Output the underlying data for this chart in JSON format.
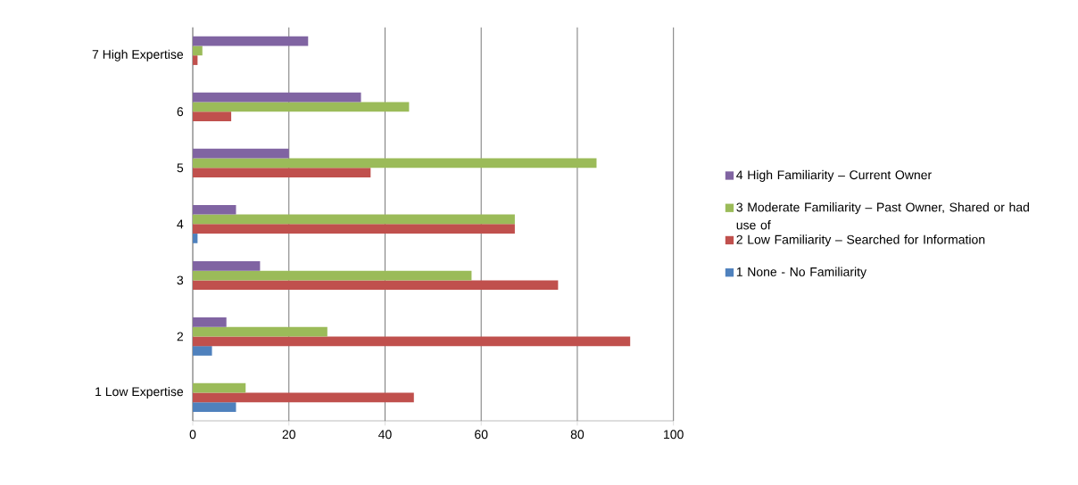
{
  "chart_data": {
    "type": "bar",
    "orientation": "horizontal",
    "categories": [
      "7 High Expertise",
      "6",
      "5",
      "4",
      "3",
      "2",
      "1 Low Expertise"
    ],
    "series": [
      {
        "name": "1 None - No Familiarity",
        "color": "#4f81bd",
        "values": [
          0,
          0,
          0,
          1,
          0,
          4,
          9
        ]
      },
      {
        "name": "2 Low Familiarity – Searched for Information",
        "color": "#c0504d",
        "values": [
          1,
          8,
          37,
          67,
          76,
          91,
          46
        ]
      },
      {
        "name": "3 Moderate Familiarity – Past Owner, Shared or had use of",
        "color": "#9bbb59",
        "values": [
          2,
          45,
          84,
          67,
          58,
          28,
          11
        ]
      },
      {
        "name": "4 High Familiarity – Current Owner",
        "color": "#8064a2",
        "values": [
          24,
          35,
          20,
          9,
          14,
          7,
          0
        ]
      }
    ],
    "xlim": [
      0,
      100
    ],
    "xticks": [
      0,
      20,
      40,
      60,
      80,
      100
    ],
    "grid": "x",
    "legend": "right"
  }
}
